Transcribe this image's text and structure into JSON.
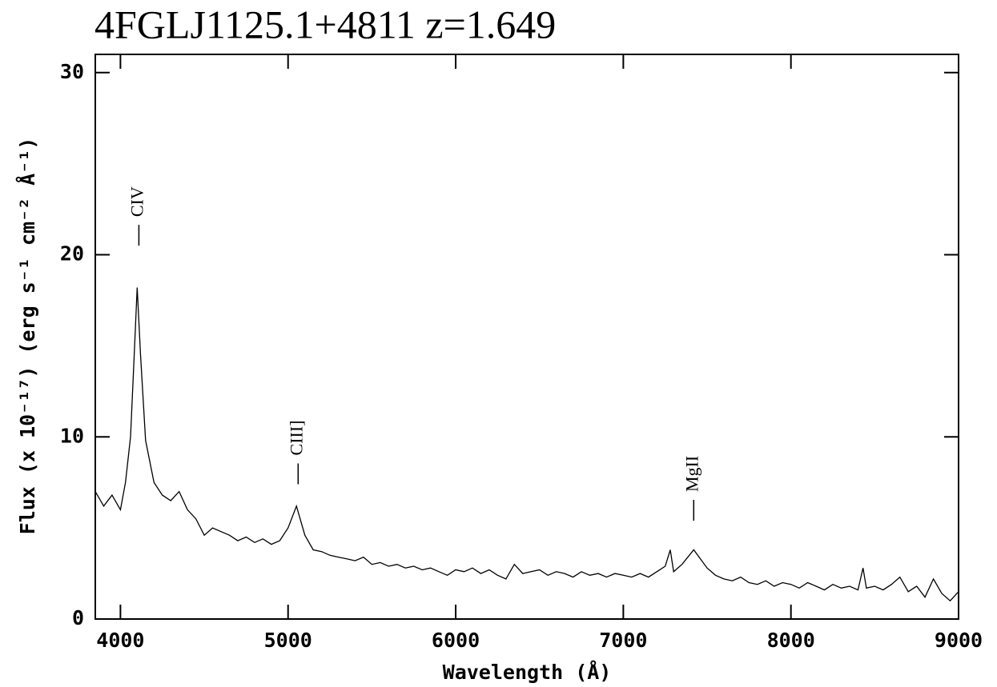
{
  "chart_data": {
    "type": "line",
    "title": "4FGLJ1125.1+4811 z=1.649",
    "x_label": "Wavelength (Å)",
    "y_label": "Flux (x 10⁻¹⁷) (erg s⁻¹ cm⁻² Å⁻¹)",
    "color": "#000000",
    "xlim": [
      3850,
      9000
    ],
    "ylim": [
      0,
      31
    ],
    "xticks": [
      4000,
      5000,
      6000,
      7000,
      8000,
      9000
    ],
    "yticks": [
      0,
      10,
      20,
      30
    ],
    "x": [
      3850,
      3900,
      3950,
      4000,
      4030,
      4060,
      4080,
      4100,
      4120,
      4150,
      4200,
      4250,
      4300,
      4350,
      4400,
      4450,
      4500,
      4550,
      4600,
      4650,
      4700,
      4750,
      4800,
      4850,
      4900,
      4950,
      5000,
      5050,
      5100,
      5150,
      5200,
      5250,
      5300,
      5350,
      5400,
      5450,
      5500,
      5550,
      5600,
      5650,
      5700,
      5750,
      5800,
      5850,
      5900,
      5950,
      6000,
      6050,
      6100,
      6150,
      6200,
      6250,
      6300,
      6350,
      6400,
      6450,
      6500,
      6550,
      6600,
      6650,
      6700,
      6750,
      6800,
      6850,
      6900,
      6950,
      7000,
      7050,
      7100,
      7150,
      7200,
      7250,
      7280,
      7300,
      7350,
      7420,
      7500,
      7550,
      7600,
      7650,
      7700,
      7750,
      7800,
      7850,
      7900,
      7950,
      8000,
      8050,
      8100,
      8150,
      8200,
      8250,
      8300,
      8350,
      8400,
      8430,
      8450,
      8500,
      8550,
      8600,
      8650,
      8700,
      8750,
      8800,
      8850,
      8900,
      8950,
      9000
    ],
    "values": [
      7.0,
      6.2,
      6.8,
      6.0,
      7.5,
      10.0,
      14.0,
      18.2,
      14.5,
      9.8,
      7.5,
      6.8,
      6.5,
      7.0,
      6.0,
      5.5,
      4.6,
      5.0,
      4.8,
      4.6,
      4.3,
      4.5,
      4.2,
      4.4,
      4.1,
      4.3,
      5.0,
      6.2,
      4.6,
      3.8,
      3.7,
      3.5,
      3.4,
      3.3,
      3.2,
      3.4,
      3.0,
      3.1,
      2.9,
      3.0,
      2.8,
      2.9,
      2.7,
      2.8,
      2.6,
      2.4,
      2.7,
      2.6,
      2.8,
      2.5,
      2.7,
      2.4,
      2.2,
      3.0,
      2.5,
      2.6,
      2.7,
      2.4,
      2.6,
      2.5,
      2.3,
      2.6,
      2.4,
      2.5,
      2.3,
      2.5,
      2.4,
      2.3,
      2.5,
      2.3,
      2.6,
      2.9,
      3.8,
      2.6,
      3.0,
      3.8,
      2.8,
      2.4,
      2.2,
      2.1,
      2.3,
      2.0,
      1.9,
      2.1,
      1.8,
      2.0,
      1.9,
      1.7,
      2.0,
      1.8,
      1.6,
      1.9,
      1.7,
      1.8,
      1.6,
      2.8,
      1.7,
      1.8,
      1.6,
      1.9,
      2.3,
      1.5,
      1.8,
      1.2,
      2.2,
      1.4,
      1.0,
      1.5
    ],
    "annotations": [
      {
        "label": "CIV",
        "x": 4110,
        "y": 20.5
      },
      {
        "label": "CIII]",
        "x": 5060,
        "y": 7.4
      },
      {
        "label": "MgII",
        "x": 7420,
        "y": 5.4
      }
    ]
  }
}
